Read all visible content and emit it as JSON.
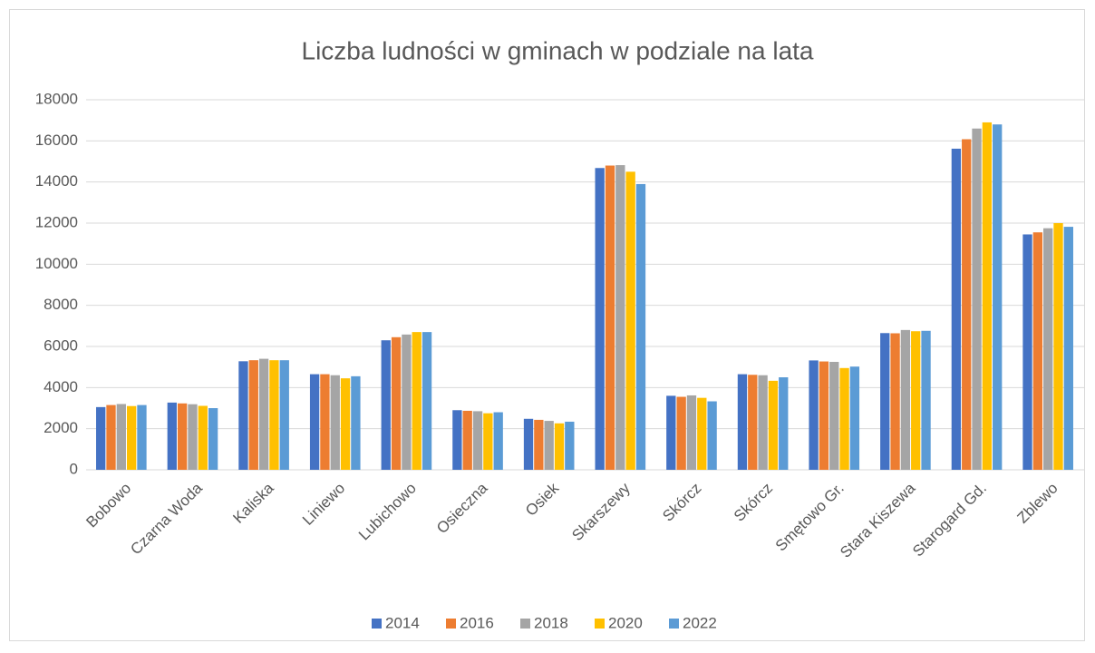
{
  "chart_data": {
    "type": "bar",
    "title": "Liczba ludności w gminach w podziale na lata",
    "categories": [
      "Bobowo",
      "Czarna Woda",
      "Kaliska",
      "Liniewo",
      "Lubichowo",
      "Osieczna",
      "Osiek",
      "Skarszewy",
      "Skórcz",
      "Skórcz",
      "Smętowo Gr.",
      "Stara Kiszewa",
      "Starogard Gd.",
      "Zblewo"
    ],
    "series": [
      {
        "name": "2014",
        "color": "#4472c4",
        "values": [
          3050,
          3270,
          5280,
          4650,
          6300,
          2900,
          2480,
          14680,
          3600,
          4650,
          5320,
          6650,
          15620,
          11450
        ]
      },
      {
        "name": "2016",
        "color": "#ed7d31",
        "values": [
          3150,
          3230,
          5330,
          4650,
          6450,
          2870,
          2430,
          14800,
          3550,
          4620,
          5270,
          6640,
          16080,
          11550
        ]
      },
      {
        "name": "2018",
        "color": "#a5a5a5",
        "values": [
          3200,
          3190,
          5400,
          4600,
          6580,
          2850,
          2380,
          14820,
          3620,
          4600,
          5250,
          6800,
          16600,
          11750
        ]
      },
      {
        "name": "2020",
        "color": "#ffc000",
        "values": [
          3100,
          3110,
          5330,
          4450,
          6700,
          2750,
          2260,
          14500,
          3500,
          4330,
          4950,
          6740,
          16900,
          12000
        ]
      },
      {
        "name": "2022",
        "color": "#5b9bd5",
        "values": [
          3150,
          3000,
          5330,
          4550,
          6700,
          2800,
          2340,
          13900,
          3330,
          4500,
          5020,
          6760,
          16800,
          11820
        ]
      }
    ],
    "ylim": [
      0,
      18000
    ],
    "yticks": [
      0,
      2000,
      4000,
      6000,
      8000,
      10000,
      12000,
      14000,
      16000,
      18000
    ],
    "grid": true,
    "legend": "bottom"
  }
}
